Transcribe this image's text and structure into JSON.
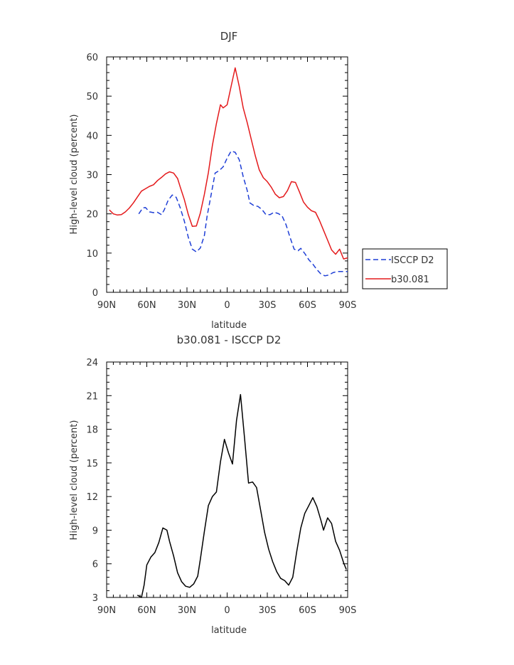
{
  "colors": {
    "observed": "#1f3fd6",
    "model": "#e41a1c",
    "difference": "#000000",
    "axis": "#000000"
  },
  "chart_data": [
    {
      "type": "line",
      "title": "DJF",
      "xlabel": "latitude",
      "ylabel": "High-level cloud (percent)",
      "xlim": [
        -90,
        90
      ],
      "ylim": [
        0,
        60
      ],
      "xticks": [
        {
          "v": -90,
          "label": "90N"
        },
        {
          "v": -60,
          "label": "60N"
        },
        {
          "v": -30,
          "label": "30N"
        },
        {
          "v": 0,
          "label": "0"
        },
        {
          "v": 30,
          "label": "30S"
        },
        {
          "v": 60,
          "label": "60S"
        },
        {
          "v": 90,
          "label": "90S"
        }
      ],
      "yticks": [
        0,
        10,
        20,
        30,
        40,
        50,
        60
      ],
      "legend": "right",
      "series": [
        {
          "name": "ISCCP D2",
          "style": "dashed",
          "color": "#1f3fd6",
          "x": [
            -66,
            -63,
            -61,
            -58,
            -55,
            -52,
            -49,
            -47,
            -44,
            -41,
            -38,
            -35,
            -32,
            -29,
            -26,
            -23,
            -20,
            -17,
            -15,
            -12,
            -9,
            -6,
            -3,
            0,
            3,
            6,
            9,
            12,
            15,
            17,
            20,
            23,
            26,
            29,
            32,
            35,
            38,
            41,
            44,
            47,
            50,
            53,
            55,
            58,
            61,
            64,
            67,
            70,
            73,
            76,
            79,
            82,
            85,
            88,
            90
          ],
          "y": [
            20,
            21.5,
            21.6,
            20.5,
            20.3,
            20.4,
            19.8,
            21,
            23.5,
            24.8,
            24.2,
            21.5,
            18.2,
            14,
            11,
            10.3,
            11.3,
            14.5,
            19.4,
            24.8,
            30.4,
            31,
            32,
            34.2,
            36,
            35.7,
            33.8,
            29.5,
            25.9,
            22.8,
            22.1,
            21.9,
            21.1,
            19.8,
            19.8,
            20.4,
            20.1,
            19.5,
            17.2,
            14,
            11,
            10.6,
            11.2,
            9.9,
            8.3,
            7.2,
            5.8,
            4.7,
            4.2,
            4.4,
            5,
            5.3,
            5.3,
            5.3,
            5.3
          ]
        },
        {
          "name": "b30.081",
          "style": "solid",
          "color": "#e41a1c",
          "x": [
            -88,
            -85,
            -82,
            -79,
            -76,
            -73,
            -70,
            -67,
            -64,
            -61,
            -58,
            -55,
            -52,
            -49,
            -46,
            -43,
            -40,
            -37,
            -35,
            -32,
            -29,
            -26,
            -23,
            -20,
            -17,
            -14,
            -11,
            -8,
            -5,
            -3,
            0,
            3,
            6,
            9,
            12,
            15,
            18,
            21,
            24,
            27,
            30,
            33,
            36,
            39,
            42,
            45,
            48,
            51,
            54,
            57,
            60,
            63,
            66,
            69,
            72,
            75,
            78,
            81,
            84,
            87,
            90
          ],
          "y": [
            21,
            20,
            19.7,
            19.8,
            20.5,
            21.5,
            22.8,
            24.3,
            25.8,
            26.4,
            27,
            27.4,
            28.5,
            29.3,
            30.2,
            30.7,
            30.4,
            29,
            26.8,
            23.7,
            19.8,
            16.8,
            16.9,
            20.2,
            25,
            30.5,
            37.5,
            43,
            47.8,
            47,
            47.8,
            52.5,
            57.2,
            52.5,
            47,
            43.2,
            39,
            34.8,
            31.2,
            29.2,
            28.2,
            26.8,
            25,
            24.1,
            24.4,
            25.9,
            28.2,
            28,
            25.6,
            23,
            21.7,
            20.8,
            20.4,
            18.3,
            15.8,
            13.3,
            10.8,
            9.7,
            11,
            8.5,
            8.8
          ]
        }
      ]
    },
    {
      "type": "line",
      "title": "b30.081 - ISCCP D2",
      "xlabel": "latitude",
      "ylabel": "High-level cloud (percent)",
      "xlim": [
        -90,
        90
      ],
      "ylim": [
        3,
        24
      ],
      "xticks": [
        {
          "v": -90,
          "label": "90N"
        },
        {
          "v": -60,
          "label": "60N"
        },
        {
          "v": -30,
          "label": "30N"
        },
        {
          "v": 0,
          "label": "0"
        },
        {
          "v": 30,
          "label": "30S"
        },
        {
          "v": 60,
          "label": "60S"
        },
        {
          "v": 90,
          "label": "90S"
        }
      ],
      "yticks": [
        3,
        6,
        9,
        12,
        15,
        18,
        21,
        24
      ],
      "legend": "none",
      "series": [
        {
          "name": "b30.081 - ISCCP D2",
          "style": "solid",
          "color": "#000000",
          "x": [
            -67,
            -64,
            -62,
            -60,
            -57,
            -54,
            -51,
            -48,
            -45,
            -43,
            -40,
            -37,
            -34,
            -31,
            -28,
            -25,
            -22,
            -20,
            -17,
            -14,
            -11,
            -8,
            -5,
            -2,
            1,
            4,
            7,
            10,
            13,
            16,
            19,
            22,
            25,
            28,
            31,
            34,
            37,
            40,
            43,
            46,
            49,
            52,
            55,
            58,
            61,
            64,
            67,
            70,
            72,
            75,
            78,
            81,
            84,
            87,
            89
          ],
          "y": [
            3.2,
            3.0,
            4.1,
            5.9,
            6.6,
            7.0,
            7.9,
            9.2,
            9.0,
            8.0,
            6.7,
            5.2,
            4.4,
            4.0,
            3.9,
            4.2,
            4.9,
            6.4,
            8.9,
            11.2,
            12.0,
            12.4,
            15.1,
            17.1,
            15.9,
            14.9,
            18.8,
            21.1,
            17.2,
            13.2,
            13.3,
            12.8,
            10.8,
            8.8,
            7.3,
            6.2,
            5.3,
            4.7,
            4.5,
            4.1,
            4.8,
            7.1,
            9.2,
            10.5,
            11.2,
            11.9,
            11.1,
            9.9,
            9.0,
            10.1,
            9.6,
            8.0,
            7.2,
            6.1,
            5.5
          ]
        }
      ]
    }
  ]
}
